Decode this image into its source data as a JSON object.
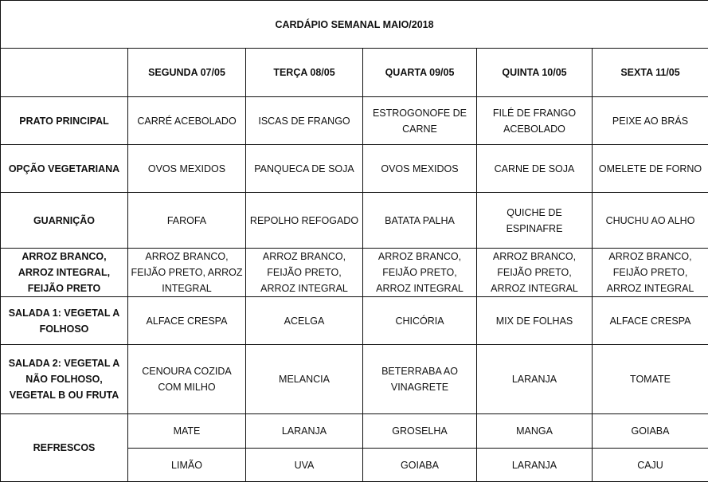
{
  "title": "CARDÁPIO SEMANAL MAIO/2018",
  "days": [
    "SEGUNDA 07/05",
    "TERÇA 08/05",
    "QUARTA 09/05",
    "QUINTA 10/05",
    "SEXTA 11/05"
  ],
  "rows": [
    {
      "label": "PRATO PRINCIPAL",
      "cells": [
        "CARRÉ ACEBOLADO",
        "ISCAS DE FRANGO",
        "ESTROGONOFE DE CARNE",
        "FILÉ DE FRANGO ACEBOLADO",
        "PEIXE AO BRÁS"
      ]
    },
    {
      "label": "OPÇÃO VEGETARIANA",
      "cells": [
        "OVOS MEXIDOS",
        "PANQUECA DE SOJA",
        "OVOS MEXIDOS",
        "CARNE DE SOJA",
        "OMELETE DE FORNO"
      ]
    },
    {
      "label": "GUARNIÇÃO",
      "cells": [
        "FAROFA",
        "REPOLHO REFOGADO",
        "BATATA PALHA",
        "QUICHE DE ESPINAFRE",
        "CHUCHU AO ALHO"
      ]
    },
    {
      "label": "ARROZ BRANCO, ARROZ INTEGRAL, FEIJÃO PRETO",
      "cells": [
        "ARROZ BRANCO, FEIJÃO PRETO, ARROZ INTEGRAL",
        "ARROZ BRANCO, FEIJÃO PRETO, ARROZ INTEGRAL",
        "ARROZ BRANCO, FEIJÃO PRETO, ARROZ INTEGRAL",
        "ARROZ BRANCO, FEIJÃO PRETO, ARROZ INTEGRAL",
        "ARROZ BRANCO, FEIJÃO PRETO, ARROZ INTEGRAL"
      ]
    },
    {
      "label": "SALADA 1: VEGETAL A FOLHOSO",
      "cells": [
        "ALFACE CRESPA",
        "ACELGA",
        "CHICÓRIA",
        "MIX DE FOLHAS",
        "ALFACE CRESPA"
      ]
    },
    {
      "label": "SALADA 2: VEGETAL A NÃO FOLHOSO, VEGETAL B OU FRUTA",
      "cells": [
        "CENOURA COZIDA COM MILHO",
        "MELANCIA",
        "BETERRABA AO VINAGRETE",
        "LARANJA",
        "TOMATE"
      ]
    }
  ],
  "refrescos": {
    "label": "REFRESCOS",
    "row1": [
      "MATE",
      "LARANJA",
      "GROSELHA",
      "MANGA",
      "GOIABA"
    ],
    "row2": [
      "LIMÃO",
      "UVA",
      "GOIABA",
      "LARANJA",
      "CAJU"
    ]
  }
}
